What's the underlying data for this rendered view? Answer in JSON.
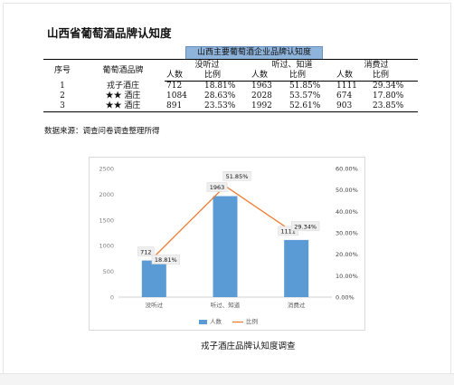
{
  "title": "山西省葡萄酒品牌认知度",
  "table": {
    "caption": "山西主要葡萄酒企业品牌认知度",
    "headers": {
      "index": "序号",
      "brand": "葡萄酒品牌",
      "groups": [
        "没听过",
        "听过、知道",
        "消费过"
      ],
      "sub": [
        "人数",
        "比例"
      ]
    },
    "rows": [
      {
        "index": "1",
        "brand": "戎子酒庄",
        "never_count": "712",
        "never_pct": "18.81%",
        "heard_count": "1963",
        "heard_pct": "51.85%",
        "consumed_count": "1111",
        "consumed_pct": "29.34%"
      },
      {
        "index": "2",
        "brand": "★★ 酒庄",
        "never_count": "1084",
        "never_pct": "28.63%",
        "heard_count": "2028",
        "heard_pct": "53.57%",
        "consumed_count": "674",
        "consumed_pct": "17.80%"
      },
      {
        "index": "3",
        "brand": "★★ 酒庄",
        "never_count": "891",
        "never_pct": "23.53%",
        "heard_count": "1992",
        "heard_pct": "52.61%",
        "consumed_count": "903",
        "consumed_pct": "23.85%"
      }
    ]
  },
  "source_note": "数据来源：调查问卷调查整理所得",
  "chart_caption": "戎子酒庄品牌认知度调查",
  "chart_data": {
    "type": "bar",
    "categories": [
      "没听过",
      "听过、知道",
      "消费过"
    ],
    "series": [
      {
        "name": "人数",
        "type": "bar",
        "axis": "left",
        "color": "#5b9bd5",
        "values": [
          712,
          1963,
          1111
        ]
      },
      {
        "name": "比例",
        "type": "line",
        "axis": "right",
        "color": "#ed7d31",
        "values": [
          18.81,
          51.85,
          29.34
        ]
      }
    ],
    "bar_labels": [
      "712",
      "1963",
      "1111"
    ],
    "line_labels": [
      "18.81%",
      "51.85%",
      "29.34%"
    ],
    "y_left": {
      "min": 0,
      "max": 2500,
      "ticks": [
        "0",
        "500",
        "1000",
        "1500",
        "2000",
        "2500"
      ]
    },
    "y_right": {
      "min": 0,
      "max": 60,
      "ticks": [
        "0.00%",
        "10.00%",
        "20.00%",
        "30.00%",
        "40.00%",
        "50.00%",
        "60.00%"
      ]
    },
    "legend_position": "bottom",
    "grid": false
  }
}
